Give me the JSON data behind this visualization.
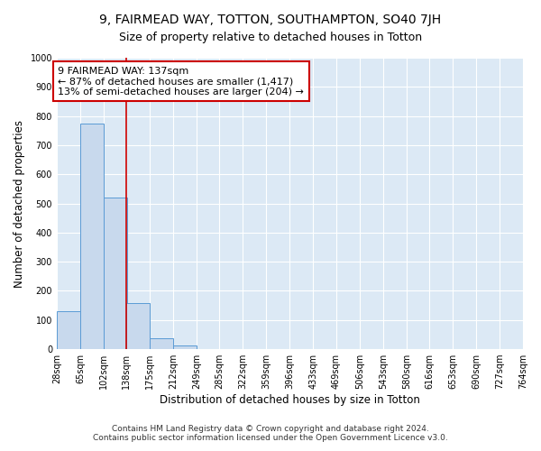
{
  "title_line1": "9, FAIRMEAD WAY, TOTTON, SOUTHAMPTON, SO40 7JH",
  "title_line2": "Size of property relative to detached houses in Totton",
  "xlabel": "Distribution of detached houses by size in Totton",
  "ylabel": "Number of detached properties",
  "bg_color": "#dce9f5",
  "bar_color": "#c8d9ed",
  "bar_edge_color": "#5b9bd5",
  "vline_x_index": 3,
  "vline_color": "#cc0000",
  "annotation_text": "9 FAIRMEAD WAY: 137sqm\n← 87% of detached houses are smaller (1,417)\n13% of semi-detached houses are larger (204) →",
  "annotation_box_color": "#cc0000",
  "bins": [
    28,
    65,
    102,
    138,
    175,
    212,
    249,
    285,
    322,
    359,
    396,
    433,
    469,
    506,
    543,
    580,
    616,
    653,
    690,
    727,
    764
  ],
  "counts": [
    130,
    775,
    520,
    157,
    37,
    13,
    0,
    0,
    0,
    0,
    0,
    0,
    0,
    0,
    0,
    0,
    0,
    0,
    0,
    0
  ],
  "ylim": [
    0,
    1000
  ],
  "yticks": [
    0,
    100,
    200,
    300,
    400,
    500,
    600,
    700,
    800,
    900,
    1000
  ],
  "tick_labels": [
    "28sqm",
    "65sqm",
    "102sqm",
    "138sqm",
    "175sqm",
    "212sqm",
    "249sqm",
    "285sqm",
    "322sqm",
    "359sqm",
    "396sqm",
    "433sqm",
    "469sqm",
    "506sqm",
    "543sqm",
    "580sqm",
    "616sqm",
    "653sqm",
    "690sqm",
    "727sqm",
    "764sqm"
  ],
  "footer_text": "Contains HM Land Registry data © Crown copyright and database right 2024.\nContains public sector information licensed under the Open Government Licence v3.0.",
  "grid_color": "#ffffff",
  "title_fontsize": 10,
  "subtitle_fontsize": 9,
  "axis_label_fontsize": 8.5,
  "tick_fontsize": 7,
  "annotation_fontsize": 8,
  "footer_fontsize": 6.5
}
